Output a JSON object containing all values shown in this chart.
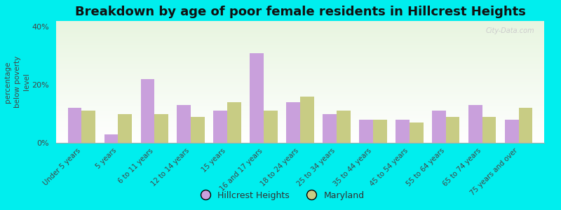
{
  "title": "Breakdown by age of poor female residents in Hillcrest Heights",
  "ylabel": "percentage\nbelow poverty\nlevel",
  "categories": [
    "Under 5 years",
    "5 years",
    "6 to 11 years",
    "12 to 14 years",
    "15 years",
    "16 and 17 years",
    "18 to 24 years",
    "25 to 34 years",
    "35 to 44 years",
    "45 to 54 years",
    "55 to 64 years",
    "65 to 74 years",
    "75 years and over"
  ],
  "hillcrest_values": [
    12,
    3,
    22,
    13,
    11,
    31,
    14,
    10,
    8,
    8,
    11,
    13,
    8
  ],
  "maryland_values": [
    11,
    10,
    10,
    9,
    14,
    11,
    16,
    11,
    8,
    7,
    9,
    9,
    12
  ],
  "hillcrest_color": "#c9a0dc",
  "maryland_color": "#c8cc84",
  "outer_bg": "#00eeee",
  "ylim": [
    0,
    42
  ],
  "yticks": [
    0,
    20,
    40
  ],
  "ytick_labels": [
    "0%",
    "20%",
    "40%"
  ],
  "title_fontsize": 13,
  "legend_labels": [
    "Hillcrest Heights",
    "Maryland"
  ],
  "bar_width": 0.38,
  "watermark": "City-Data.com"
}
